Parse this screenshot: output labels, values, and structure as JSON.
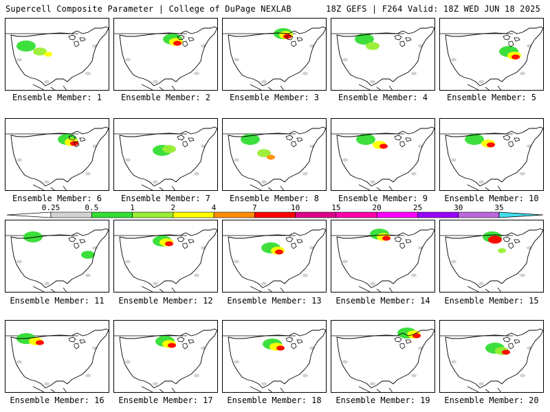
{
  "header": {
    "left": "Supercell Composite Parameter | College of DuPage NEXLAB",
    "right": "18Z GEFS | F264 Valid: 18Z WED JUN 18 2025"
  },
  "panels": [
    {
      "label": "Ensemble Member: 1"
    },
    {
      "label": "Ensemble Member: 2"
    },
    {
      "label": "Ensemble Member: 3"
    },
    {
      "label": "Ensemble Member: 4"
    },
    {
      "label": "Ensemble Member: 5"
    },
    {
      "label": "Ensemble Member: 6"
    },
    {
      "label": "Ensemble Member: 7"
    },
    {
      "label": "Ensemble Member: 8"
    },
    {
      "label": "Ensemble Member: 9"
    },
    {
      "label": "Ensemble Member: 10"
    },
    {
      "label": "Ensemble Member: 11"
    },
    {
      "label": "Ensemble Member: 12"
    },
    {
      "label": "Ensemble Member: 13"
    },
    {
      "label": "Ensemble Member: 14"
    },
    {
      "label": "Ensemble Member: 15"
    },
    {
      "label": "Ensemble Member: 16"
    },
    {
      "label": "Ensemble Member: 17"
    },
    {
      "label": "Ensemble Member: 18"
    },
    {
      "label": "Ensemble Member: 19"
    },
    {
      "label": "Ensemble Member: 20"
    }
  ],
  "colorbar": {
    "thresholds": [
      "0.25",
      "0.5",
      "1",
      "2",
      "4",
      "7",
      "10",
      "15",
      "20",
      "25",
      "30",
      "35"
    ],
    "colors": [
      "#d2d2d2",
      "#33dd33",
      "#99ee33",
      "#ffff00",
      "#ff8c00",
      "#ff0000",
      "#dd0088",
      "#ff00aa",
      "#ff00ff",
      "#9900ff",
      "#bb66dd",
      "#44ddee"
    ]
  }
}
